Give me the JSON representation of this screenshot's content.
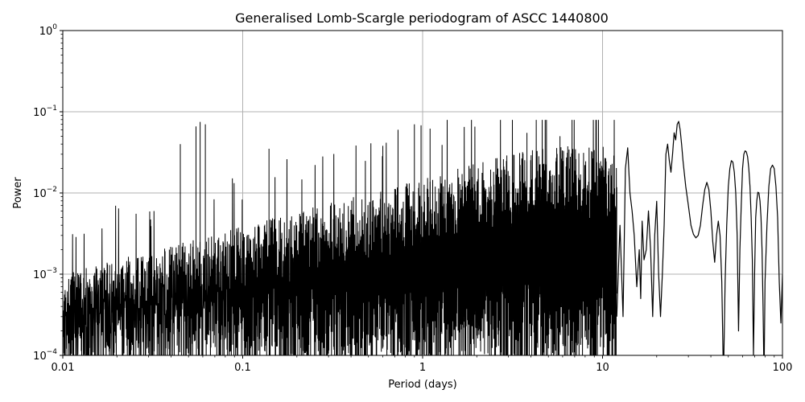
{
  "chart_data": {
    "type": "line",
    "title": "Generalised Lomb-Scargle periodogram of ASCC 1440800",
    "xlabel": "Period (days)",
    "ylabel": "Power",
    "x_scale": "log",
    "y_scale": "log",
    "xlim": [
      0.01,
      100
    ],
    "ylim": [
      0.0001,
      1
    ],
    "grid": true,
    "line_color": "#000000",
    "x_ticks": [
      {
        "value": 0.01,
        "label": "0.01"
      },
      {
        "value": 0.1,
        "label": "0.1"
      },
      {
        "value": 1,
        "label": "1"
      },
      {
        "value": 10,
        "label": "10"
      },
      {
        "value": 100,
        "label": "100"
      }
    ],
    "y_ticks": [
      {
        "value": 0.0001,
        "base": "10",
        "exp": "−4"
      },
      {
        "value": 0.001,
        "base": "10",
        "exp": "−3"
      },
      {
        "value": 0.01,
        "base": "10",
        "exp": "−2"
      },
      {
        "value": 0.1,
        "base": "10",
        "exp": "−1"
      },
      {
        "value": 1,
        "base": "10",
        "exp": "0"
      }
    ],
    "series": [
      {
        "values_note": "",
        "x": [
          12,
          12.5,
          13,
          13.4,
          13.8,
          14.2,
          14.6,
          15,
          15.5,
          16,
          16.3,
          16.6,
          17,
          17.5,
          18,
          18.5,
          19,
          19.5,
          20,
          20.5,
          21,
          21.5,
          22,
          22.5,
          23,
          23.5,
          24,
          24.5,
          25,
          25.5,
          26,
          26.5,
          27,
          27.5,
          28,
          29,
          30,
          31,
          32,
          33,
          34,
          35,
          36,
          37,
          38,
          39,
          40,
          41,
          42,
          43,
          44,
          45,
          46,
          47,
          48,
          49,
          50,
          51,
          52,
          53,
          54,
          55,
          56,
          57,
          58,
          59,
          60,
          61,
          62,
          63,
          64,
          65,
          66,
          67,
          68,
          69,
          70,
          71,
          72,
          73,
          74,
          75,
          76,
          77,
          78,
          79,
          80,
          82,
          84,
          86,
          88,
          90,
          92,
          94,
          96,
          98,
          100
        ],
        "y": [
          0.0003,
          0.004,
          0.0003,
          0.02,
          0.036,
          0.01,
          0.006,
          0.003,
          0.0007,
          0.002,
          0.0005,
          0.0045,
          0.0015,
          0.002,
          0.006,
          0.002,
          0.0003,
          0.003,
          0.0079,
          0.001,
          0.0003,
          0.001,
          0.004,
          0.03,
          0.04,
          0.025,
          0.018,
          0.03,
          0.055,
          0.045,
          0.07,
          0.076,
          0.06,
          0.04,
          0.025,
          0.012,
          0.007,
          0.004,
          0.0031,
          0.0028,
          0.003,
          0.004,
          0.007,
          0.011,
          0.0135,
          0.011,
          0.006,
          0.0025,
          0.0014,
          0.003,
          0.0045,
          0.003,
          0.0008,
          5e-05,
          0.0008,
          0.004,
          0.012,
          0.02,
          0.025,
          0.024,
          0.018,
          0.01,
          0.003,
          0.0002,
          0.002,
          0.007,
          0.02,
          0.03,
          0.033,
          0.032,
          0.028,
          0.02,
          0.012,
          0.005,
          0.0015,
          0.0001,
          0.001,
          0.005,
          0.008,
          0.0102,
          0.01,
          0.008,
          0.005,
          0.002,
          0.0004,
          5e-05,
          0.0008,
          0.004,
          0.012,
          0.02,
          0.022,
          0.02,
          0.012,
          0.005,
          0.0008,
          0.00025,
          0.001
        ]
      }
    ]
  }
}
